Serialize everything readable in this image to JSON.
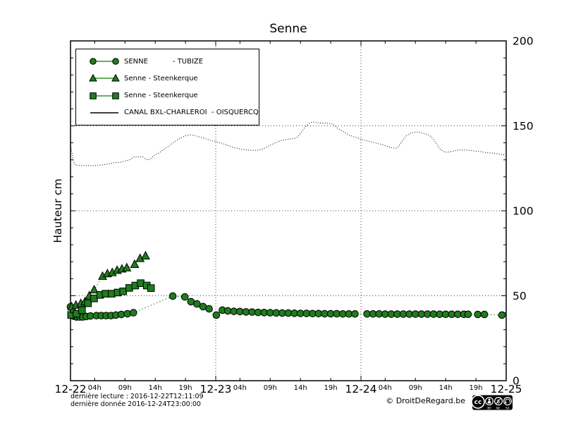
{
  "footer": {
    "last_reading": "dernière lecture : 2016-12-22T12:11:09",
    "last_data": "dernière donnée  2016-12-24T23:00:00",
    "copyright": "© DroitDeRegard.be",
    "license": {
      "badge_text": "cc",
      "parts": [
        "BY",
        "NC",
        "SA"
      ]
    }
  },
  "colors": {
    "marker_green": "#1e7d1e",
    "line_green": "#2e962e",
    "canal_black": "#000000",
    "grid_gray": "#444444"
  },
  "chart_data": {
    "type": "line",
    "title": "Senne",
    "xlabel": "",
    "ylabel": "Hauteur cm",
    "ylim": [
      0,
      200
    ],
    "y_major_ticks": [
      0,
      50,
      100,
      150,
      200
    ],
    "y_minor_step": 10,
    "grid": "dotted horizontal at 50/100/150, dotted vertical at day boundaries",
    "legend_position": "upper left",
    "x_axis": {
      "unit": "hours from 2016-12-22 00:00",
      "range": [
        0,
        72
      ],
      "day_tick_labels": [
        "12-22",
        "12-23",
        "12-24",
        "12-25"
      ],
      "hour_tick_labels": [
        "04h",
        "09h",
        "14h",
        "19h"
      ],
      "hour_tick_offsets": [
        4,
        9,
        14,
        19
      ]
    },
    "series": [
      {
        "name": "SENNE           - TUBIZE",
        "marker": "circle",
        "line_style": "dotted",
        "color_key": "green",
        "points": [
          [
            0,
            43.5
          ],
          [
            0.5,
            38
          ],
          [
            1,
            37.5
          ],
          [
            1.5,
            37.5
          ],
          [
            2,
            37.5
          ],
          [
            2.6,
            37.8
          ],
          [
            3.3,
            38.1
          ],
          [
            4.3,
            38.3
          ],
          [
            5.1,
            38.3
          ],
          [
            5.9,
            38.3
          ],
          [
            6.7,
            38.3
          ],
          [
            7.5,
            38.6
          ],
          [
            8.4,
            39
          ],
          [
            9.4,
            39.4
          ],
          [
            10.4,
            40
          ],
          [
            16.9,
            49.8
          ],
          [
            18.9,
            49.3
          ],
          [
            19.9,
            46.5
          ],
          [
            20.9,
            45.2
          ],
          [
            21.9,
            43.6
          ],
          [
            22.9,
            42.3
          ],
          [
            24.1,
            38.6
          ],
          [
            25.1,
            41.5
          ],
          [
            26,
            41.1
          ],
          [
            27,
            40.8
          ],
          [
            28,
            40.7
          ],
          [
            29,
            40.5
          ],
          [
            30,
            40.4
          ],
          [
            31,
            40.2
          ],
          [
            32,
            40.1
          ],
          [
            33,
            40
          ],
          [
            34,
            39.9
          ],
          [
            35,
            39.8
          ],
          [
            36,
            39.8
          ],
          [
            37,
            39.7
          ],
          [
            38,
            39.6
          ],
          [
            39,
            39.6
          ],
          [
            40,
            39.5
          ],
          [
            41,
            39.5
          ],
          [
            42,
            39.4
          ],
          [
            43,
            39.4
          ],
          [
            44,
            39.4
          ],
          [
            45,
            39.3
          ],
          [
            46,
            39.3
          ],
          [
            47,
            39.3
          ],
          [
            49,
            39.3
          ],
          [
            50,
            39.3
          ],
          [
            51,
            39.3
          ],
          [
            52,
            39.2
          ],
          [
            53,
            39.2
          ],
          [
            54,
            39.2
          ],
          [
            55,
            39.2
          ],
          [
            56,
            39.2
          ],
          [
            57,
            39.2
          ],
          [
            58,
            39.2
          ],
          [
            59,
            39.2
          ],
          [
            60,
            39.2
          ],
          [
            61,
            39.1
          ],
          [
            62,
            39.1
          ],
          [
            63,
            39.1
          ],
          [
            64,
            39.1
          ],
          [
            65,
            39.1
          ],
          [
            65.7,
            39.1
          ],
          [
            67.3,
            39
          ],
          [
            68.4,
            39
          ],
          [
            71.3,
            38.6
          ]
        ]
      },
      {
        "name": "Senne - Steenkerque",
        "marker": "triangle",
        "line_style": "dotted",
        "color_key": "green",
        "points": [
          [
            0.2,
            43.5
          ],
          [
            0.9,
            44.5
          ],
          [
            1.7,
            45.5
          ],
          [
            2.4,
            46.5
          ],
          [
            3.1,
            50
          ],
          [
            3.9,
            53.5
          ],
          [
            5.3,
            61.5
          ],
          [
            6.1,
            63
          ],
          [
            6.9,
            63.7
          ],
          [
            7.7,
            65
          ],
          [
            8.5,
            65.8
          ],
          [
            9.3,
            66.5
          ],
          [
            10.6,
            68.5
          ],
          [
            11.5,
            72
          ],
          [
            12.4,
            73.5
          ]
        ]
      },
      {
        "name": "Senne - Steenkerque",
        "marker": "square",
        "line_style": "dotted",
        "color_key": "green",
        "points": [
          [
            0.1,
            38.7
          ],
          [
            1,
            39.4
          ],
          [
            1.9,
            41.5
          ],
          [
            2.9,
            45.6
          ],
          [
            3.9,
            48.4
          ],
          [
            4.9,
            50.5
          ],
          [
            5.8,
            51.2
          ],
          [
            6.8,
            51.2
          ],
          [
            7.8,
            51.9
          ],
          [
            8.7,
            52.6
          ],
          [
            9.7,
            54.6
          ],
          [
            10.7,
            56
          ],
          [
            11.6,
            57.4
          ],
          [
            12.6,
            56
          ],
          [
            13.3,
            54.5
          ]
        ]
      },
      {
        "name": "CANAL BXL-CHARLEROI  - OISQUERCQ",
        "marker": "none",
        "line_style": "dotted",
        "color_key": "black",
        "points": [
          [
            0,
            139.5
          ],
          [
            0.2,
            135
          ],
          [
            0.4,
            131
          ],
          [
            0.6,
            128
          ],
          [
            0.8,
            127
          ],
          [
            1.5,
            126.6
          ],
          [
            2.5,
            126.6
          ],
          [
            3.5,
            126.6
          ],
          [
            4.5,
            126.7
          ],
          [
            5.2,
            127
          ],
          [
            6,
            127.4
          ],
          [
            7,
            128.2
          ],
          [
            8.2,
            128.6
          ],
          [
            8.7,
            129
          ],
          [
            9.3,
            129.5
          ],
          [
            9.9,
            130.3
          ],
          [
            10.5,
            131.7
          ],
          [
            11.3,
            131.7
          ],
          [
            12,
            131.7
          ],
          [
            12.4,
            130.3
          ],
          [
            12.8,
            129.9
          ],
          [
            13.3,
            130.8
          ],
          [
            13.7,
            132.4
          ],
          [
            14.6,
            134
          ],
          [
            15.4,
            136.1
          ],
          [
            16.3,
            138.2
          ],
          [
            17.2,
            140.7
          ],
          [
            18.1,
            142.7
          ],
          [
            18.9,
            144
          ],
          [
            19.6,
            144.8
          ],
          [
            20.4,
            144.4
          ],
          [
            21.2,
            143.6
          ],
          [
            22.1,
            142.7
          ],
          [
            23.1,
            141.5
          ],
          [
            24,
            140.7
          ],
          [
            25,
            139.8
          ],
          [
            25.6,
            139
          ],
          [
            26.6,
            137.6
          ],
          [
            27.4,
            136.9
          ],
          [
            28.2,
            136.2
          ],
          [
            29,
            135.8
          ],
          [
            30,
            135.6
          ],
          [
            30.9,
            135.6
          ],
          [
            31.6,
            136.2
          ],
          [
            32.3,
            137.2
          ],
          [
            33,
            138.6
          ],
          [
            33.8,
            139.9
          ],
          [
            34.6,
            141.1
          ],
          [
            35.3,
            141.8
          ],
          [
            36.1,
            142.2
          ],
          [
            37,
            142.5
          ],
          [
            37.6,
            143.5
          ],
          [
            38.1,
            146
          ],
          [
            38.6,
            148.5
          ],
          [
            39.1,
            150.5
          ],
          [
            39.7,
            152
          ],
          [
            40.3,
            152.3
          ],
          [
            41,
            151.5
          ],
          [
            41.8,
            151.7
          ],
          [
            42.6,
            151.6
          ],
          [
            43.4,
            151
          ],
          [
            44.1,
            148.7
          ],
          [
            44.8,
            147.2
          ],
          [
            45.4,
            146
          ],
          [
            46,
            144.5
          ],
          [
            46.6,
            143.9
          ],
          [
            47.2,
            143.2
          ],
          [
            47.8,
            142.4
          ],
          [
            48.3,
            141.8
          ],
          [
            49.1,
            141.1
          ],
          [
            49.9,
            140.4
          ],
          [
            50.7,
            139.7
          ],
          [
            51.4,
            139
          ],
          [
            52.1,
            138.3
          ],
          [
            52.7,
            137.6
          ],
          [
            53.3,
            136.9
          ],
          [
            53.9,
            136.9
          ],
          [
            54.3,
            138.3
          ],
          [
            54.7,
            140.4
          ],
          [
            55.1,
            142.4
          ],
          [
            55.6,
            144.5
          ],
          [
            56.4,
            146
          ],
          [
            57.2,
            146.4
          ],
          [
            58,
            146
          ],
          [
            58.7,
            145.2
          ],
          [
            59.3,
            144.5
          ],
          [
            59.9,
            142.4
          ],
          [
            60.3,
            140.4
          ],
          [
            60.7,
            138.3
          ],
          [
            61.1,
            136.2
          ],
          [
            61.7,
            134.9
          ],
          [
            62.2,
            134.4
          ],
          [
            63,
            134.9
          ],
          [
            63.8,
            135.6
          ],
          [
            64.5,
            135.8
          ],
          [
            65.3,
            135.8
          ],
          [
            66.1,
            135.6
          ],
          [
            66.9,
            135.1
          ],
          [
            67.7,
            134.9
          ],
          [
            68.4,
            134.4
          ],
          [
            69.2,
            134.1
          ],
          [
            70,
            133.9
          ],
          [
            70.8,
            133.4
          ],
          [
            71.5,
            133
          ],
          [
            72,
            132.8
          ]
        ]
      }
    ]
  }
}
